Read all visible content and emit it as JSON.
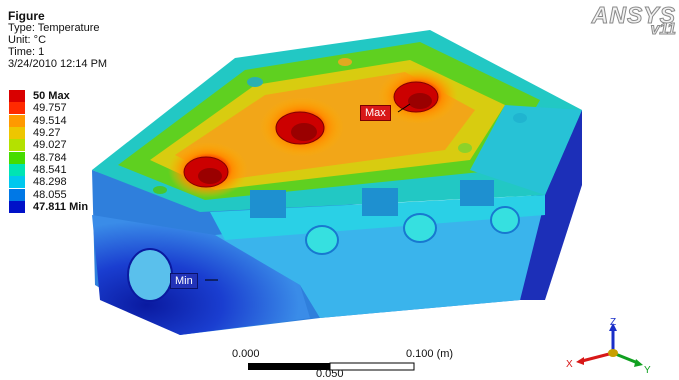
{
  "info": {
    "title": "Figure",
    "type": "Type: Temperature",
    "unit": "Unit: °C",
    "time": "Time: 1",
    "date": "3/24/2010 12:14 PM"
  },
  "legend": [
    {
      "label": "50 Max",
      "color": "#d90000",
      "bold": true
    },
    {
      "label": "49.757",
      "color": "#ff2a00"
    },
    {
      "label": "49.514",
      "color": "#ff9900"
    },
    {
      "label": "49.27",
      "color": "#eec600"
    },
    {
      "label": "49.027",
      "color": "#b4e100"
    },
    {
      "label": "48.784",
      "color": "#46dc00"
    },
    {
      "label": "48.541",
      "color": "#00e4b4"
    },
    {
      "label": "48.298",
      "color": "#00c8ee"
    },
    {
      "label": "48.055",
      "color": "#0078e6"
    },
    {
      "label": "47.811 Min",
      "color": "#0011c8",
      "bold": true
    }
  ],
  "logo": {
    "brand": "ANSYS",
    "version": "v11"
  },
  "probes": {
    "max": "Max",
    "min": "Min"
  },
  "scale_bar": {
    "start": "0.000",
    "end": "0.100 (m)",
    "mid": "0.050"
  },
  "triad": {
    "z": "Z",
    "y": "Y",
    "x": "X"
  }
}
